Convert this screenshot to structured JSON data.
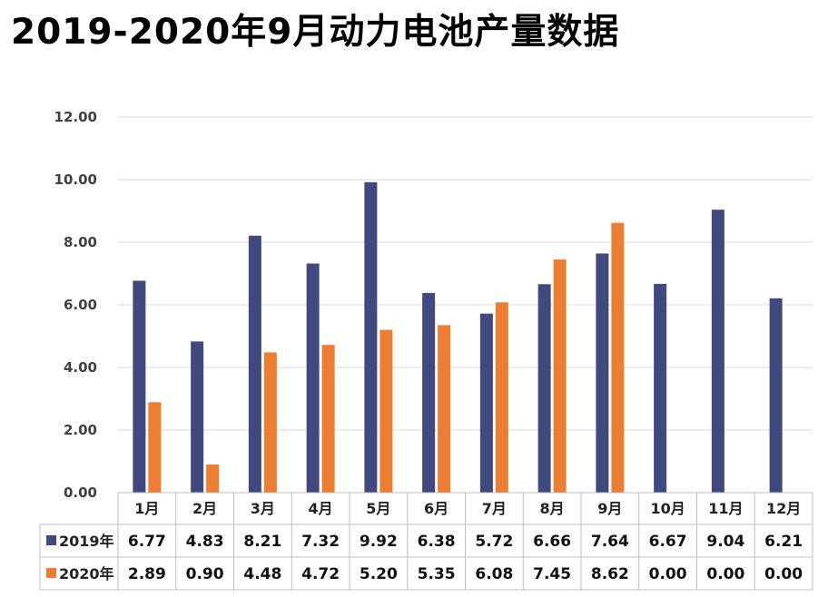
{
  "header": {
    "title": "2019-2020年9月动力电池产量数据"
  },
  "colors": {
    "s2019": "#414a7e",
    "s2020": "#ed7d31",
    "grid": "#d9d9d9",
    "tableBorder": "#bfbfbf"
  },
  "chart_data": {
    "type": "bar",
    "title": "2019-2020年9月动力电池产量数据",
    "categories": [
      "1月",
      "2月",
      "3月",
      "4月",
      "5月",
      "6月",
      "7月",
      "8月",
      "9月",
      "10月",
      "11月",
      "12月"
    ],
    "series": [
      {
        "name": "2019年",
        "values": [
          6.77,
          4.83,
          8.21,
          7.32,
          9.92,
          6.38,
          5.72,
          6.66,
          7.64,
          6.67,
          9.04,
          6.21
        ],
        "labels": [
          "6.77",
          "4.83",
          "8.21",
          "7.32",
          "9.92",
          "6.38",
          "5.72",
          "6.66",
          "7.64",
          "6.67",
          "9.04",
          "6.21"
        ]
      },
      {
        "name": "2020年",
        "values": [
          2.89,
          0.9,
          4.48,
          4.72,
          5.2,
          5.35,
          6.08,
          7.45,
          8.62,
          0.0,
          0.0,
          0.0
        ],
        "labels": [
          "2.89",
          "0.90",
          "4.48",
          "4.72",
          "5.20",
          "5.35",
          "6.08",
          "7.45",
          "8.62",
          "0.00",
          "0.00",
          "0.00"
        ]
      }
    ],
    "yticks": [
      "0.00",
      "2.00",
      "4.00",
      "6.00",
      "8.00",
      "10.00",
      "12.00"
    ],
    "ylim": [
      0,
      12
    ],
    "grid": true,
    "legend": "data-table-left"
  }
}
